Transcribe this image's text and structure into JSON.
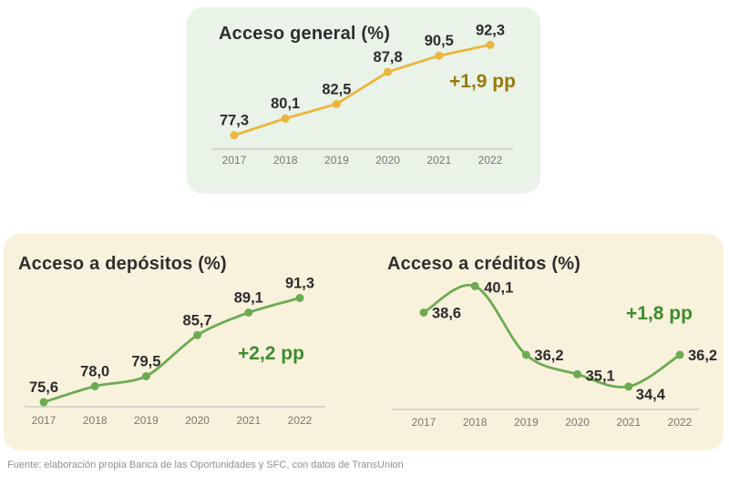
{
  "page": {
    "background": "#ffffff",
    "footer": "Fuente: elaboración propia Banca de las Oportunidades y SFC, con datos de TransUnion"
  },
  "colors": {
    "general_card_bg": "#E9F3E8",
    "bottom_panel_bg": "#F8F2DC",
    "general_line": "#ECB53C",
    "general_delta": "#97790F",
    "green_line": "#6CAB53",
    "green_delta": "#3E8C2E",
    "title_text": "#2E2E2E",
    "value_text": "#2D2D2D",
    "year_text": "#7A7970",
    "axis_line": "#CCCCC4",
    "footer_text": "#8F8F8F"
  },
  "chart_data": [
    {
      "id": "acceso-general",
      "type": "line",
      "title": "Acceso general (%)",
      "categories": [
        "2017",
        "2018",
        "2019",
        "2020",
        "2021",
        "2022"
      ],
      "values": [
        77.3,
        80.1,
        82.5,
        87.8,
        90.5,
        92.3
      ],
      "value_labels": [
        "77,3",
        "80,1",
        "82,5",
        "87,8",
        "90,5",
        "92,3"
      ],
      "delta_label": "+1,9 pp",
      "line_color": "#ECB53C",
      "delta_color": "#97790F",
      "value_label_position": "above",
      "ylim": [
        75,
        94
      ],
      "grid": false,
      "legend": "none",
      "xlabel": "",
      "ylabel": ""
    },
    {
      "id": "acceso-depositos",
      "type": "line",
      "title": "Acceso a depósitos (%)",
      "categories": [
        "2017",
        "2018",
        "2019",
        "2020",
        "2021",
        "2022"
      ],
      "values": [
        75.6,
        78.0,
        79.5,
        85.7,
        89.1,
        91.3
      ],
      "value_labels": [
        "75,6",
        "78,0",
        "79,5",
        "85,7",
        "89,1",
        "91,3"
      ],
      "delta_label": "+2,2 pp",
      "line_color": "#6CAB53",
      "delta_color": "#3E8C2E",
      "value_label_position": "above",
      "ylim": [
        74.9,
        91.5
      ],
      "grid": false,
      "legend": "none",
      "xlabel": "",
      "ylabel": ""
    },
    {
      "id": "acceso-creditos",
      "type": "line",
      "title": "Acceso a créditos (%)",
      "categories": [
        "2017",
        "2018",
        "2019",
        "2020",
        "2021",
        "2022"
      ],
      "values": [
        38.6,
        40.1,
        36.2,
        35.1,
        34.4,
        36.2
      ],
      "value_labels": [
        "38,6",
        "40,1",
        "36,2",
        "35,1",
        "34,4",
        "36,2"
      ],
      "delta_label": "+1,8 pp",
      "line_color": "#6CAB53",
      "delta_color": "#3E8C2E",
      "value_label_position": "right",
      "ylim": [
        33.1,
        41
      ],
      "grid": false,
      "legend": "none",
      "xlabel": "",
      "ylabel": ""
    }
  ]
}
